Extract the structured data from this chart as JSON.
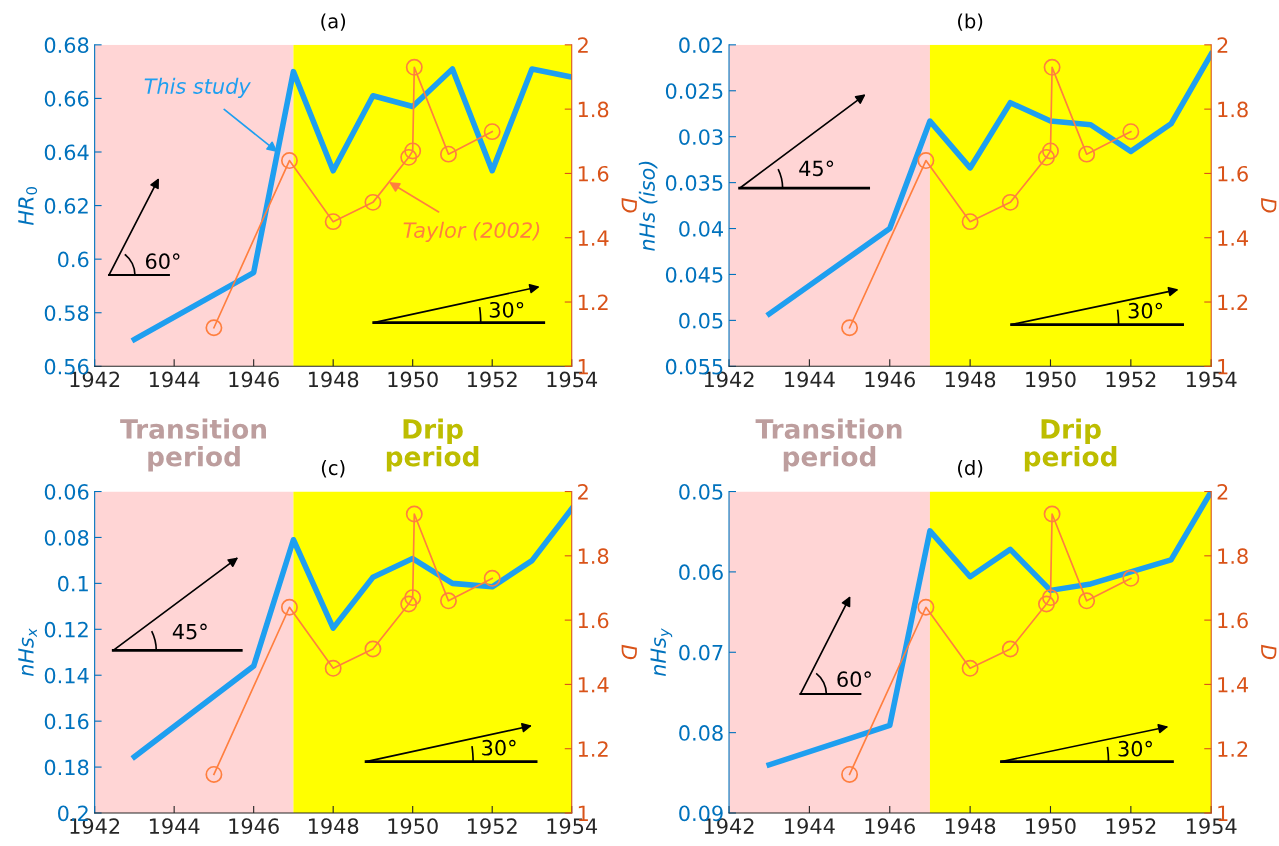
{
  "chart_data": [
    {
      "type": "line",
      "title": "(a)",
      "ylabel": "HR$_{0}$",
      "y2label": "D",
      "line_style": "solid",
      "xlim": [
        1942,
        1954
      ],
      "xticks": [
        1942,
        1944,
        1946,
        1948,
        1950,
        1952,
        1954
      ],
      "ylim": [
        0.56,
        0.68
      ],
      "yticks": [
        0.56,
        0.58,
        0.6,
        0.62,
        0.64,
        0.66,
        0.68
      ],
      "y2lim": [
        1,
        2
      ],
      "y2ticks": [
        1,
        1.2,
        1.4,
        1.6,
        1.8,
        2
      ],
      "series": [
        {
          "name": "This study",
          "color": "#1e9ff0",
          "axis": "y",
          "marker": "none",
          "x": [
            1943,
            1946,
            1947,
            1948,
            1949,
            1950,
            1951,
            1952,
            1953,
            1954
          ],
          "values": [
            0.57,
            0.595,
            0.67,
            0.633,
            0.661,
            0.657,
            0.671,
            0.633,
            0.671,
            0.668
          ]
        },
        {
          "name": "Taylor (2002)",
          "color": "#ff7f3f",
          "axis": "y2",
          "marker": "circle",
          "x": [
            1945,
            1946.9,
            1948,
            1949,
            1949.9,
            1950,
            1950.04,
            1950.9,
            1952
          ],
          "values": [
            1.12,
            1.64,
            1.45,
            1.51,
            1.65,
            1.67,
            1.93,
            1.66,
            1.73
          ]
        }
      ],
      "bands": [
        {
          "axis": "x",
          "from": 1942,
          "to": 1947,
          "label": "Transition period",
          "color": "#ffd5d5"
        },
        {
          "axis": "x",
          "from": 1947,
          "to": 1954,
          "label": "Drip period",
          "color": "#ffff00"
        }
      ],
      "annotations": [
        "60°",
        "30°"
      ]
    },
    {
      "type": "line",
      "title": "(b)",
      "ylabel": "nHs (iso)",
      "y2label": "D",
      "line_style": "solid",
      "xlim": [
        1942,
        1954
      ],
      "xticks": [
        1942,
        1944,
        1946,
        1948,
        1950,
        1952,
        1954
      ],
      "ylim": [
        0.055,
        0.02
      ],
      "yticks": [
        0.02,
        0.025,
        0.03,
        0.035,
        0.04,
        0.045,
        0.05,
        0.055
      ],
      "y2lim": [
        1,
        2
      ],
      "y2ticks": [
        1,
        1.2,
        1.4,
        1.6,
        1.8,
        2
      ],
      "series": [
        {
          "color": "#1e9ff0",
          "axis": "y",
          "marker": "none",
          "x": [
            1943,
            1946,
            1947,
            1948,
            1949,
            1950,
            1951,
            1952,
            1953,
            1954
          ],
          "values": [
            0.0493,
            0.04,
            0.0283,
            0.0334,
            0.0263,
            0.0283,
            0.0287,
            0.0316,
            0.0286,
            0.021
          ]
        },
        {
          "color": "#ff7f3f",
          "axis": "y2",
          "marker": "circle",
          "x": [
            1945,
            1946.9,
            1948,
            1949,
            1949.9,
            1950,
            1950.04,
            1950.9,
            1952
          ],
          "values": [
            1.12,
            1.64,
            1.45,
            1.51,
            1.65,
            1.67,
            1.93,
            1.66,
            1.73
          ]
        }
      ],
      "bands": [
        {
          "axis": "x",
          "from": 1942,
          "to": 1947,
          "label": "Transition period",
          "color": "#ffd5d5"
        },
        {
          "axis": "x",
          "from": 1947,
          "to": 1954,
          "label": "Drip period",
          "color": "#ffff00"
        }
      ],
      "annotations": [
        "45°",
        "30°"
      ]
    },
    {
      "type": "line",
      "title": "(c)",
      "ylabel": "nHs$_{x}$",
      "y2label": "D",
      "line_style": "solid",
      "xlim": [
        1942,
        1954
      ],
      "xticks": [
        1942,
        1944,
        1946,
        1948,
        1950,
        1952,
        1954
      ],
      "ylim": [
        0.2,
        0.06
      ],
      "yticks": [
        0.06,
        0.08,
        0.1,
        0.12,
        0.14,
        0.16,
        0.18,
        0.2
      ],
      "y2lim": [
        1,
        2
      ],
      "y2ticks": [
        1,
        1.2,
        1.4,
        1.6,
        1.8,
        2
      ],
      "series": [
        {
          "color": "#1e9ff0",
          "axis": "y",
          "marker": "none",
          "x": [
            1943,
            1946,
            1947,
            1948,
            1949,
            1950,
            1951,
            1952,
            1953,
            1954
          ],
          "values": [
            0.1755,
            0.136,
            0.081,
            0.1195,
            0.0973,
            0.0892,
            0.1,
            0.1015,
            0.0901,
            0.0675
          ]
        },
        {
          "color": "#ff7f3f",
          "axis": "y2",
          "marker": "circle",
          "x": [
            1945,
            1946.9,
            1948,
            1949,
            1949.9,
            1950,
            1950.04,
            1950.9,
            1952
          ],
          "values": [
            1.12,
            1.64,
            1.45,
            1.51,
            1.65,
            1.67,
            1.93,
            1.66,
            1.73
          ]
        }
      ],
      "bands": [
        {
          "axis": "x",
          "from": 1942,
          "to": 1947,
          "color": "#ffd5d5"
        },
        {
          "axis": "x",
          "from": 1947,
          "to": 1954,
          "color": "#ffff00"
        }
      ],
      "annotations": [
        "45°",
        "30°"
      ]
    },
    {
      "type": "line",
      "title": "(d)",
      "ylabel": "nHs$_{y}$",
      "y2label": "D",
      "line_style": "solid",
      "xlim": [
        1942,
        1954
      ],
      "xticks": [
        1942,
        1944,
        1946,
        1948,
        1950,
        1952,
        1954
      ],
      "ylim": [
        0.09,
        0.05
      ],
      "yticks": [
        0.05,
        0.06,
        0.07,
        0.08,
        0.09
      ],
      "y2lim": [
        1,
        2
      ],
      "y2ticks": [
        1,
        1.2,
        1.4,
        1.6,
        1.8,
        2
      ],
      "series": [
        {
          "color": "#1e9ff0",
          "axis": "y",
          "marker": "none",
          "x": [
            1943,
            1946,
            1947,
            1948,
            1949,
            1950,
            1951,
            1952,
            1953,
            1954
          ],
          "values": [
            0.084,
            0.0791,
            0.0549,
            0.0606,
            0.0572,
            0.0623,
            0.0615,
            0.06,
            0.0585,
            0.05
          ]
        },
        {
          "color": "#ff7f3f",
          "axis": "y2",
          "marker": "circle",
          "x": [
            1945,
            1946.9,
            1948,
            1949,
            1949.9,
            1950,
            1950.04,
            1950.9,
            1952
          ],
          "values": [
            1.12,
            1.64,
            1.45,
            1.51,
            1.65,
            1.67,
            1.93,
            1.66,
            1.73
          ]
        }
      ],
      "bands": [
        {
          "axis": "x",
          "from": 1942,
          "to": 1947,
          "color": "#ffd5d5"
        },
        {
          "axis": "x",
          "from": 1947,
          "to": 1954,
          "color": "#ffff00"
        }
      ],
      "annotations": [
        "60°",
        "30°"
      ]
    }
  ]
}
